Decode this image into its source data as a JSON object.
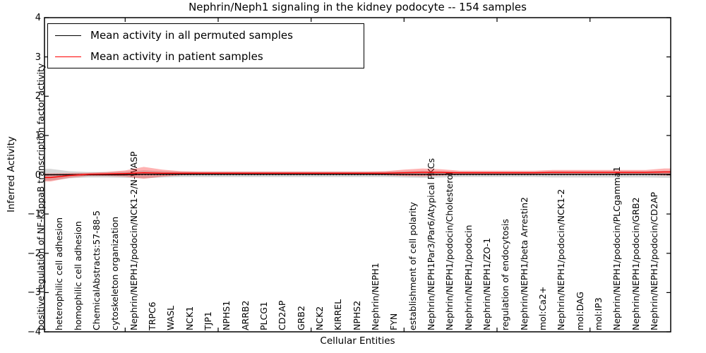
{
  "chart_data": {
    "type": "line",
    "title": "Nephrin/Neph1 signaling in the kidney podocyte -- 154 samples",
    "xlabel": "Cellular Entities",
    "ylabel": "Inferred Activity",
    "ylim": [
      -4,
      4
    ],
    "yticks": [
      4,
      3,
      2,
      1,
      0,
      -1,
      -2,
      -3,
      -4
    ],
    "grid": false,
    "legend_position": "upper left",
    "zero_line": "dotted",
    "categories": [
      "positive regulation of NF-kappaB transcription factor activity",
      "heterophilic cell adhesion",
      "homophilic cell adhesion",
      "ChemicalAbstracts:57-88-5",
      "cytoskeleton organization",
      "Nephrin/NEPH1/podocin/NCK1-2/N-WASP",
      "TRPC6",
      "WASL",
      "NCK1",
      "TJP1",
      "NPHS1",
      "ARRB2",
      "PLCG1",
      "CD2AP",
      "GRB2",
      "NCK2",
      "KIRREL",
      "NPHS2",
      "Nephrin/NEPH1",
      "FYN",
      "establishment of cell polarity",
      "Nephrin/NEPH1Par3/Par6/Atypical PKCs",
      "Nephrin/NEPH1/podocin/Cholesterol",
      "Nephrin/NEPH1/podocin",
      "Nephrin/NEPH1/ZO-1",
      "regulation of endocytosis",
      "Nephrin/NEPH1/beta Arrestin2",
      "mol:Ca2+",
      "Nephrin/NEPH1/podocin/NCK1-2",
      "mol:DAG",
      "mol:IP3",
      "Nephrin/NEPH1/podocin/PLCgamma1",
      "Nephrin/NEPH1/podocin/GRB2",
      "Nephrin/NEPH1/podocin/CD2AP"
    ],
    "series": [
      {
        "name": "Mean activity in all permuted samples",
        "color": "#000000",
        "band_color": "rgba(130,130,130,0.33)",
        "values": [
          0.0,
          0.0,
          0.0,
          0.0,
          0.0,
          0.01,
          0.01,
          0.01,
          0.01,
          0.01,
          0.01,
          0.01,
          0.01,
          0.01,
          0.01,
          0.01,
          0.01,
          0.01,
          0.01,
          0.01,
          0.01,
          0.01,
          0.01,
          0.01,
          0.01,
          0.01,
          0.01,
          0.01,
          0.01,
          0.01,
          0.01,
          0.01,
          0.01,
          0.01
        ],
        "band": [
          0.15,
          0.09,
          0.07,
          0.07,
          0.08,
          0.1,
          0.08,
          0.07,
          0.07,
          0.07,
          0.07,
          0.07,
          0.07,
          0.07,
          0.07,
          0.07,
          0.07,
          0.07,
          0.07,
          0.08,
          0.09,
          0.08,
          0.07,
          0.07,
          0.07,
          0.07,
          0.07,
          0.08,
          0.08,
          0.08,
          0.08,
          0.08,
          0.08,
          0.09
        ]
      },
      {
        "name": "Mean activity in patient samples",
        "color": "#ff0000",
        "band_color": "rgba(255,0,0,0.30)",
        "values": [
          -0.07,
          -0.02,
          0.01,
          0.02,
          0.03,
          0.05,
          0.04,
          0.04,
          0.04,
          0.04,
          0.04,
          0.04,
          0.04,
          0.04,
          0.04,
          0.04,
          0.04,
          0.04,
          0.04,
          0.05,
          0.06,
          0.06,
          0.05,
          0.05,
          0.05,
          0.05,
          0.05,
          0.06,
          0.06,
          0.06,
          0.06,
          0.06,
          0.06,
          0.07
        ],
        "band": [
          0.1,
          0.06,
          0.04,
          0.05,
          0.08,
          0.15,
          0.09,
          0.05,
          0.04,
          0.04,
          0.04,
          0.04,
          0.04,
          0.04,
          0.04,
          0.04,
          0.04,
          0.04,
          0.05,
          0.08,
          0.1,
          0.08,
          0.05,
          0.05,
          0.05,
          0.05,
          0.05,
          0.06,
          0.06,
          0.06,
          0.06,
          0.06,
          0.06,
          0.09
        ]
      }
    ],
    "top_tick_indices": [
      4,
      9,
      14,
      19,
      24,
      29
    ]
  }
}
